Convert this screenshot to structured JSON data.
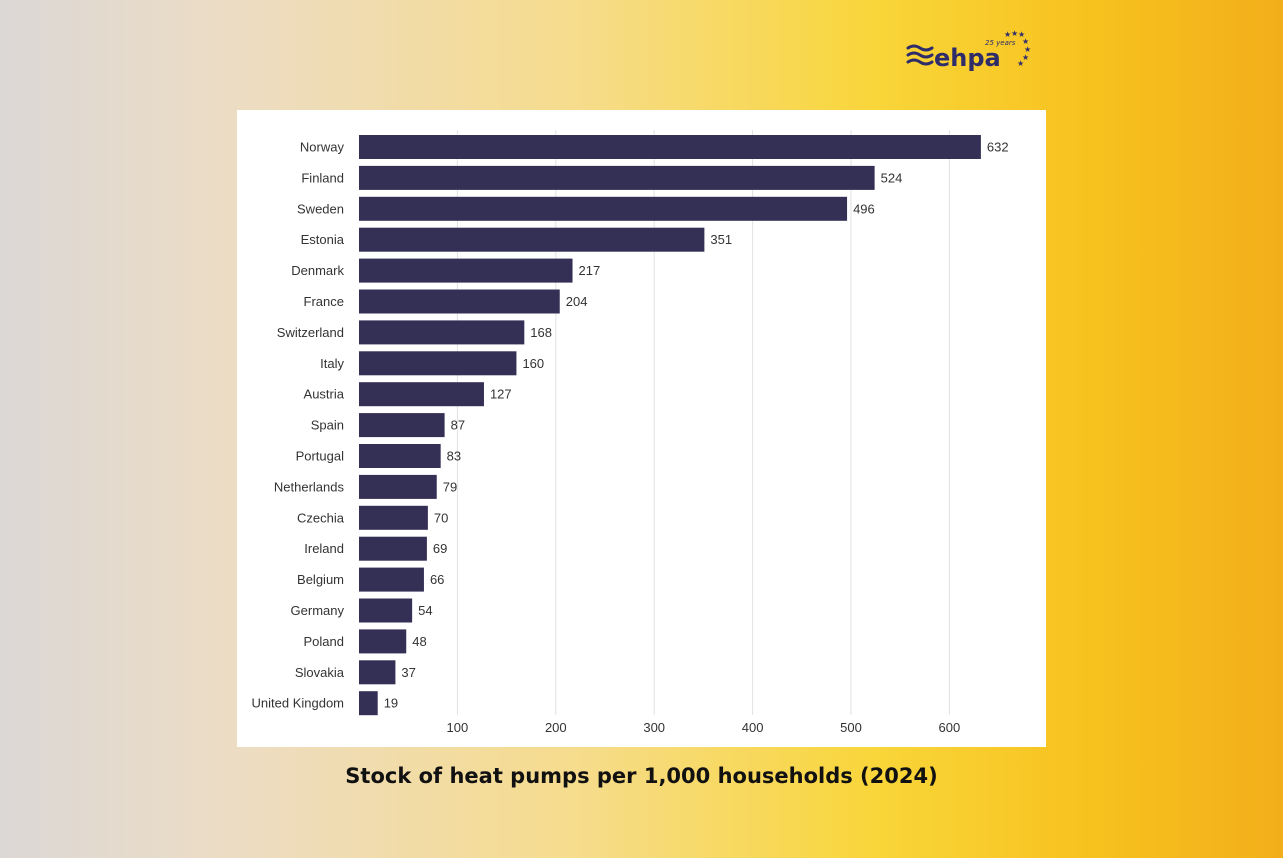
{
  "logo": {
    "text": "ehpa",
    "badge": "25 years"
  },
  "title": "Stock of heat pumps per 1,000 households (2024)",
  "colors": {
    "bar": "#342f55",
    "grid": "#e2e2e2",
    "logo": "#2e2d6a"
  },
  "chart_data": {
    "type": "bar",
    "orientation": "horizontal",
    "title": "Stock of heat pumps per 1,000 households (2024)",
    "categories": [
      "Norway",
      "Finland",
      "Sweden",
      "Estonia",
      "Denmark",
      "France",
      "Switzerland",
      "Italy",
      "Austria",
      "Spain",
      "Portugal",
      "Netherlands",
      "Czechia",
      "Ireland",
      "Belgium",
      "Germany",
      "Poland",
      "Slovakia",
      "United Kingdom"
    ],
    "values": [
      632,
      524,
      496,
      351,
      217,
      204,
      168,
      160,
      127,
      87,
      83,
      79,
      70,
      69,
      66,
      54,
      48,
      37,
      19
    ],
    "xticks": [
      100,
      200,
      300,
      400,
      500,
      600
    ],
    "xlim": [
      0,
      700
    ],
    "grid": "vertical",
    "data_labels": true
  }
}
